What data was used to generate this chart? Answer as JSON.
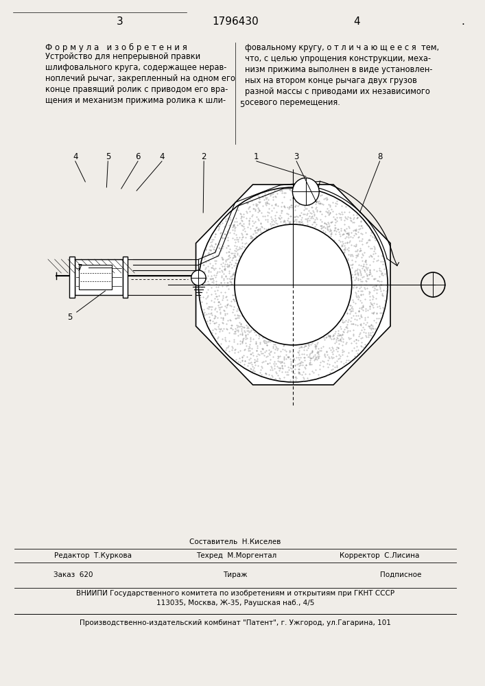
{
  "bg_color": "#f0ede8",
  "page_number_left": "3",
  "patent_number": "1796430",
  "page_number_right": "4",
  "title_formula": "Ф о р м у л а   и з о б р е т е н и я",
  "footer_editor": "Редактор  Т.Куркова",
  "footer_tech": "Техред  М.Моргентал",
  "footer_corrector": "Корректор  С.Лисина",
  "footer_order": "Заказ  620",
  "footer_tirazh": "Тираж",
  "footer_podpisnoe": "Подписное",
  "footer_vniiipi": "ВНИИПИ Государственного комитета по изобретениям и открытиям при ГКНТ СССР",
  "footer_address": "113035, Москва, Ж-35, Раушская наб., 4/5",
  "footer_patent": "Производственно-издательский комбинат \"Патент\", г. Ужгород, ул.Гагарина, 101",
  "footer_sostavitel": "Составитель  Н.Киселев"
}
